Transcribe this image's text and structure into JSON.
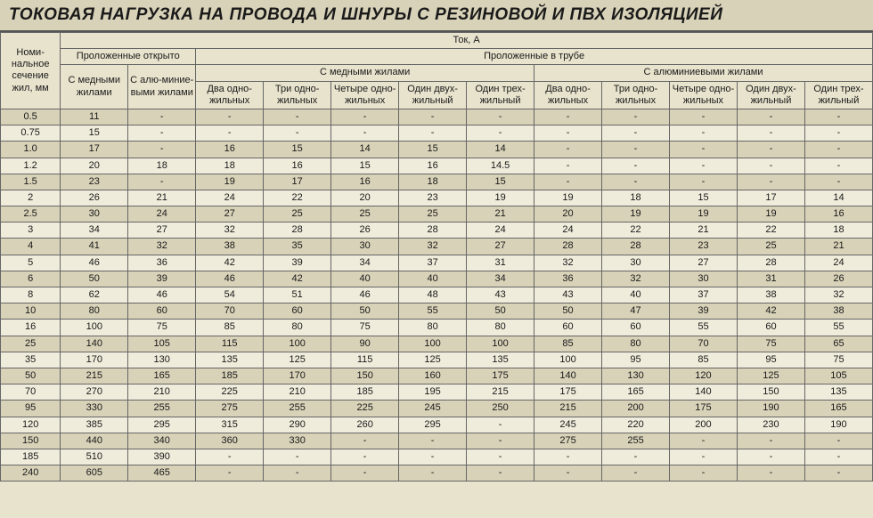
{
  "title": "ТОКОВАЯ НАГРУЗКА НА ПРОВОДА И ШНУРЫ С РЕЗИНОВОЙ И ПВХ ИЗОЛЯЦИЕЙ",
  "colors": {
    "bg_odd": "#d8d2b8",
    "bg_even": "#f0ecdb",
    "bg_page": "#e8e3cd",
    "border": "#666666",
    "text": "#1a1a1a"
  },
  "header": {
    "row_label": "Номи-нальное сечение жил, мм",
    "top_group": "Ток, А",
    "open": "Проложенные открыто",
    "pipe": "Проложенные в трубе",
    "copper_open": "С медными жилами",
    "alum_open": "С алю-миние-выми жилами",
    "copper_group": "С медными жилами",
    "alum_group": "С алюминиевыми жилами",
    "c1": "Два одно-жильных",
    "c2": "Три одно-жильных",
    "c3": "Четыре одно-жильных",
    "c4": "Один двух-жильный",
    "c5": "Один трех-жильный",
    "a1": "Два одно-жильных",
    "a2": "Три одно-жильных",
    "a3": "Четыре одно-жильных",
    "a4": "Один двух-жильный",
    "a5": "Один трех-жильный"
  },
  "rows": [
    {
      "s": "0.5",
      "v": [
        "11",
        "-",
        "-",
        "-",
        "-",
        "-",
        "-",
        "-",
        "-",
        "-",
        "-",
        "-"
      ]
    },
    {
      "s": "0.75",
      "v": [
        "15",
        "-",
        "-",
        "-",
        "-",
        "-",
        "-",
        "-",
        "-",
        "-",
        "-",
        "-"
      ]
    },
    {
      "s": "1.0",
      "v": [
        "17",
        "-",
        "16",
        "15",
        "14",
        "15",
        "14",
        "-",
        "-",
        "-",
        "-",
        "-"
      ]
    },
    {
      "s": "1.2",
      "v": [
        "20",
        "18",
        "18",
        "16",
        "15",
        "16",
        "14.5",
        "-",
        "-",
        "-",
        "-",
        "-"
      ]
    },
    {
      "s": "1.5",
      "v": [
        "23",
        "-",
        "19",
        "17",
        "16",
        "18",
        "15",
        "-",
        "-",
        "-",
        "-",
        "-"
      ]
    },
    {
      "s": "2",
      "v": [
        "26",
        "21",
        "24",
        "22",
        "20",
        "23",
        "19",
        "19",
        "18",
        "15",
        "17",
        "14"
      ]
    },
    {
      "s": "2.5",
      "v": [
        "30",
        "24",
        "27",
        "25",
        "25",
        "25",
        "21",
        "20",
        "19",
        "19",
        "19",
        "16"
      ]
    },
    {
      "s": "3",
      "v": [
        "34",
        "27",
        "32",
        "28",
        "26",
        "28",
        "24",
        "24",
        "22",
        "21",
        "22",
        "18"
      ]
    },
    {
      "s": "4",
      "v": [
        "41",
        "32",
        "38",
        "35",
        "30",
        "32",
        "27",
        "28",
        "28",
        "23",
        "25",
        "21"
      ]
    },
    {
      "s": "5",
      "v": [
        "46",
        "36",
        "42",
        "39",
        "34",
        "37",
        "31",
        "32",
        "30",
        "27",
        "28",
        "24"
      ]
    },
    {
      "s": "6",
      "v": [
        "50",
        "39",
        "46",
        "42",
        "40",
        "40",
        "34",
        "36",
        "32",
        "30",
        "31",
        "26"
      ]
    },
    {
      "s": "8",
      "v": [
        "62",
        "46",
        "54",
        "51",
        "46",
        "48",
        "43",
        "43",
        "40",
        "37",
        "38",
        "32"
      ]
    },
    {
      "s": "10",
      "v": [
        "80",
        "60",
        "70",
        "60",
        "50",
        "55",
        "50",
        "50",
        "47",
        "39",
        "42",
        "38"
      ]
    },
    {
      "s": "16",
      "v": [
        "100",
        "75",
        "85",
        "80",
        "75",
        "80",
        "80",
        "60",
        "60",
        "55",
        "60",
        "55"
      ]
    },
    {
      "s": "25",
      "v": [
        "140",
        "105",
        "115",
        "100",
        "90",
        "100",
        "100",
        "85",
        "80",
        "70",
        "75",
        "65"
      ]
    },
    {
      "s": "35",
      "v": [
        "170",
        "130",
        "135",
        "125",
        "115",
        "125",
        "135",
        "100",
        "95",
        "85",
        "95",
        "75"
      ]
    },
    {
      "s": "50",
      "v": [
        "215",
        "165",
        "185",
        "170",
        "150",
        "160",
        "175",
        "140",
        "130",
        "120",
        "125",
        "105"
      ]
    },
    {
      "s": "70",
      "v": [
        "270",
        "210",
        "225",
        "210",
        "185",
        "195",
        "215",
        "175",
        "165",
        "140",
        "150",
        "135"
      ]
    },
    {
      "s": "95",
      "v": [
        "330",
        "255",
        "275",
        "255",
        "225",
        "245",
        "250",
        "215",
        "200",
        "175",
        "190",
        "165"
      ]
    },
    {
      "s": "120",
      "v": [
        "385",
        "295",
        "315",
        "290",
        "260",
        "295",
        "-",
        "245",
        "220",
        "200",
        "230",
        "190"
      ]
    },
    {
      "s": "150",
      "v": [
        "440",
        "340",
        "360",
        "330",
        "-",
        "-",
        "-",
        "275",
        "255",
        "-",
        "-",
        "-"
      ]
    },
    {
      "s": "185",
      "v": [
        "510",
        "390",
        "-",
        "-",
        "-",
        "-",
        "-",
        "-",
        "-",
        "-",
        "-",
        "-"
      ]
    },
    {
      "s": "240",
      "v": [
        "605",
        "465",
        "-",
        "-",
        "-",
        "-",
        "-",
        "-",
        "-",
        "-",
        "-",
        "-"
      ]
    }
  ]
}
